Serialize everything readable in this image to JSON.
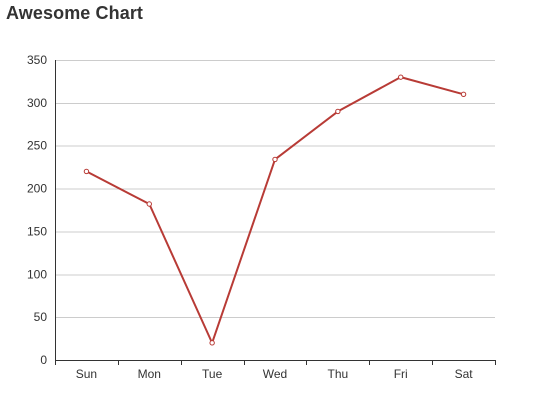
{
  "chart_data": {
    "type": "line",
    "title": "Awesome Chart",
    "xlabel": "",
    "ylabel": "",
    "categories": [
      "Sun",
      "Mon",
      "Tue",
      "Wed",
      "Thu",
      "Fri",
      "Sat"
    ],
    "series": [
      {
        "values": [
          220,
          182,
          20,
          234,
          290,
          330,
          310
        ],
        "color": "#b83b36"
      }
    ],
    "ylim": [
      0,
      350
    ],
    "yticks": [
      0,
      50,
      100,
      150,
      200,
      250,
      300,
      350
    ],
    "grid": true
  }
}
